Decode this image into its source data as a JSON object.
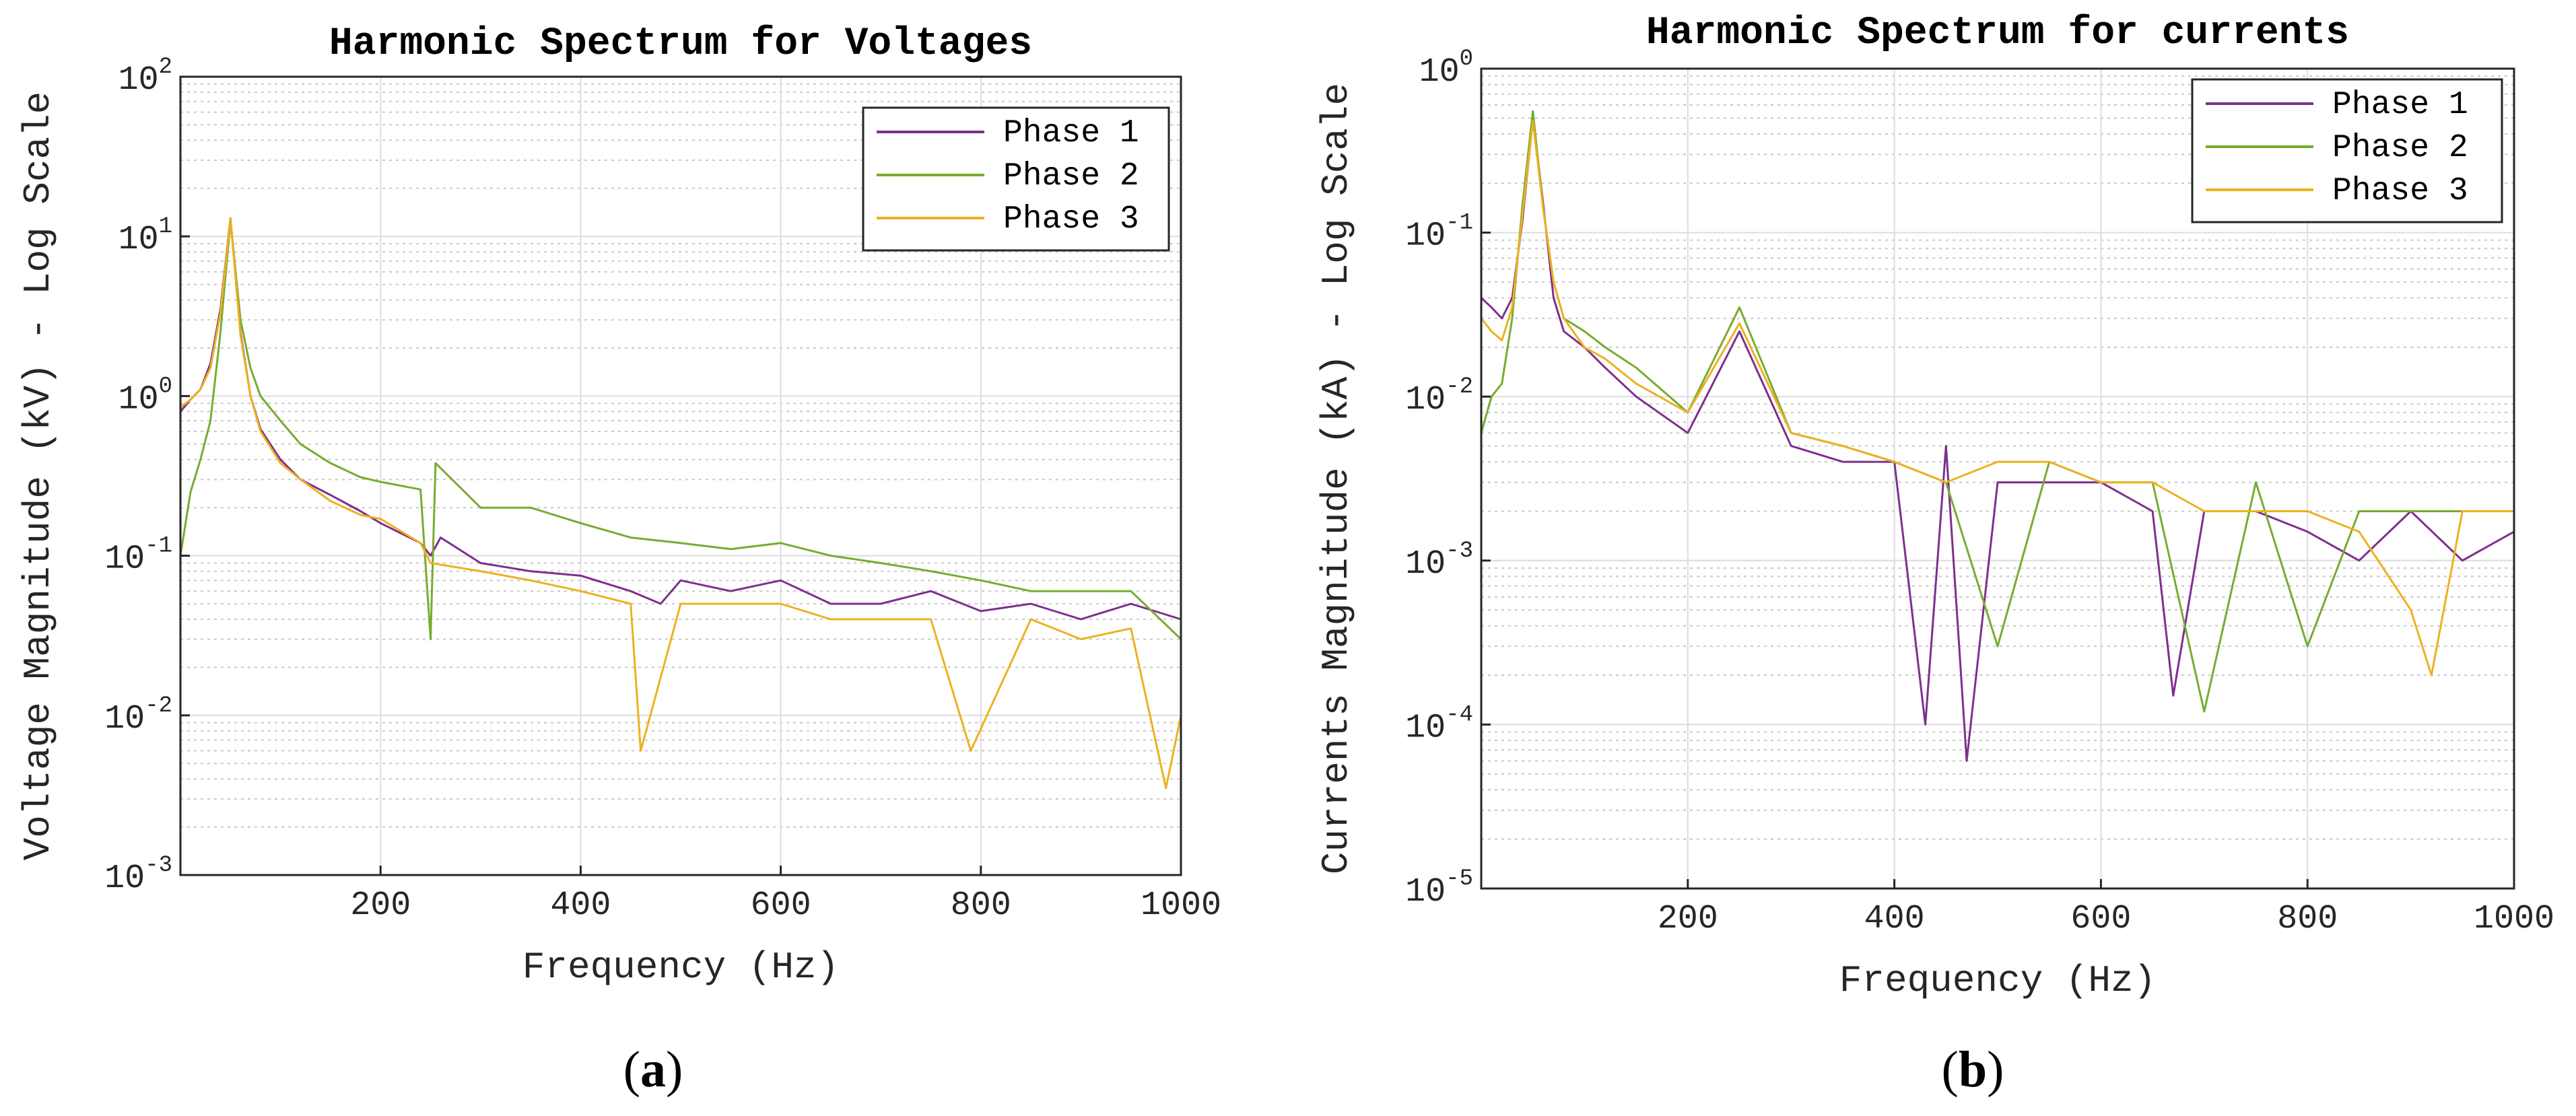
{
  "chart_data": [
    {
      "type": "line",
      "caption": "a",
      "title": "Harmonic Spectrum for Voltages",
      "xlabel": "Frequency (Hz)",
      "ylabel": "Voltage Magnitude (kV) - Log Scale",
      "xlim": [
        0,
        1000
      ],
      "ylim": [
        0.001,
        100
      ],
      "yscale": "log",
      "grid": "major and minor",
      "legend_location": "top-right",
      "xticks": [
        200,
        400,
        600,
        800,
        1000
      ],
      "ytick_exponents": [
        -3,
        -2,
        -1,
        0,
        1,
        2
      ],
      "series": [
        {
          "name": "Phase 1",
          "color": "#7E2F8E",
          "points": [
            [
              0,
              0.8
            ],
            [
              10,
              0.95
            ],
            [
              20,
              1.1
            ],
            [
              30,
              1.6
            ],
            [
              40,
              3.5
            ],
            [
              50,
              13
            ],
            [
              60,
              2.5
            ],
            [
              70,
              1.0
            ],
            [
              80,
              0.62
            ],
            [
              100,
              0.4
            ],
            [
              120,
              0.3
            ],
            [
              150,
              0.24
            ],
            [
              180,
              0.19
            ],
            [
              200,
              0.16
            ],
            [
              240,
              0.12
            ],
            [
              250,
              0.1
            ],
            [
              260,
              0.13
            ],
            [
              300,
              0.09
            ],
            [
              350,
              0.08
            ],
            [
              400,
              0.075
            ],
            [
              450,
              0.06
            ],
            [
              480,
              0.05
            ],
            [
              500,
              0.07
            ],
            [
              550,
              0.06
            ],
            [
              600,
              0.07
            ],
            [
              650,
              0.05
            ],
            [
              700,
              0.05
            ],
            [
              750,
              0.06
            ],
            [
              800,
              0.045
            ],
            [
              850,
              0.05
            ],
            [
              900,
              0.04
            ],
            [
              950,
              0.05
            ],
            [
              1000,
              0.04
            ]
          ]
        },
        {
          "name": "Phase 2",
          "color": "#77AC30",
          "points": [
            [
              0,
              0.1
            ],
            [
              10,
              0.25
            ],
            [
              20,
              0.4
            ],
            [
              30,
              0.7
            ],
            [
              40,
              2.5
            ],
            [
              50,
              12.5
            ],
            [
              60,
              3.0
            ],
            [
              70,
              1.5
            ],
            [
              80,
              1.0
            ],
            [
              100,
              0.7
            ],
            [
              120,
              0.5
            ],
            [
              150,
              0.38
            ],
            [
              180,
              0.31
            ],
            [
              200,
              0.29
            ],
            [
              240,
              0.26
            ],
            [
              250,
              0.03
            ],
            [
              255,
              0.38
            ],
            [
              300,
              0.2
            ],
            [
              350,
              0.2
            ],
            [
              400,
              0.16
            ],
            [
              450,
              0.13
            ],
            [
              500,
              0.12
            ],
            [
              550,
              0.11
            ],
            [
              600,
              0.12
            ],
            [
              650,
              0.1
            ],
            [
              700,
              0.09
            ],
            [
              750,
              0.08
            ],
            [
              800,
              0.07
            ],
            [
              850,
              0.06
            ],
            [
              900,
              0.06
            ],
            [
              950,
              0.06
            ],
            [
              1000,
              0.03
            ]
          ]
        },
        {
          "name": "Phase 3",
          "color": "#EDB120",
          "points": [
            [
              0,
              0.85
            ],
            [
              10,
              0.95
            ],
            [
              20,
              1.1
            ],
            [
              30,
              1.5
            ],
            [
              40,
              3.3
            ],
            [
              50,
              13
            ],
            [
              60,
              2.4
            ],
            [
              70,
              1.0
            ],
            [
              80,
              0.6
            ],
            [
              100,
              0.38
            ],
            [
              120,
              0.3
            ],
            [
              150,
              0.22
            ],
            [
              180,
              0.18
            ],
            [
              200,
              0.17
            ],
            [
              240,
              0.12
            ],
            [
              250,
              0.09
            ],
            [
              300,
              0.08
            ],
            [
              350,
              0.07
            ],
            [
              400,
              0.06
            ],
            [
              450,
              0.05
            ],
            [
              460,
              0.006
            ],
            [
              500,
              0.05
            ],
            [
              550,
              0.05
            ],
            [
              600,
              0.05
            ],
            [
              650,
              0.04
            ],
            [
              700,
              0.04
            ],
            [
              750,
              0.04
            ],
            [
              790,
              0.006
            ],
            [
              850,
              0.04
            ],
            [
              900,
              0.03
            ],
            [
              950,
              0.035
            ],
            [
              985,
              0.0035
            ],
            [
              1000,
              0.01
            ]
          ]
        }
      ]
    },
    {
      "type": "line",
      "caption": "b",
      "title": "Harmonic Spectrum for currents",
      "xlabel": "Frequency (Hz)",
      "ylabel": "Currents Magnitude (kA) - Log Scale",
      "xlim": [
        0,
        1000
      ],
      "ylim": [
        1e-05,
        1
      ],
      "yscale": "log",
      "grid": "major and minor",
      "legend_location": "top-right",
      "xticks": [
        200,
        400,
        600,
        800,
        1000
      ],
      "ytick_exponents": [
        -5,
        -4,
        -3,
        -2,
        -1,
        0
      ],
      "series": [
        {
          "name": "Phase 1",
          "color": "#7E2F8E",
          "points": [
            [
              0,
              0.04
            ],
            [
              10,
              0.035
            ],
            [
              20,
              0.03
            ],
            [
              30,
              0.04
            ],
            [
              40,
              0.12
            ],
            [
              50,
              0.5
            ],
            [
              60,
              0.15
            ],
            [
              70,
              0.04
            ],
            [
              80,
              0.025
            ],
            [
              100,
              0.02
            ],
            [
              120,
              0.015
            ],
            [
              150,
              0.01
            ],
            [
              200,
              0.006
            ],
            [
              250,
              0.025
            ],
            [
              300,
              0.005
            ],
            [
              350,
              0.004
            ],
            [
              400,
              0.004
            ],
            [
              430,
              0.0001
            ],
            [
              450,
              0.005
            ],
            [
              470,
              6e-05
            ],
            [
              500,
              0.003
            ],
            [
              550,
              0.003
            ],
            [
              600,
              0.003
            ],
            [
              650,
              0.002
            ],
            [
              670,
              0.00015
            ],
            [
              700,
              0.002
            ],
            [
              750,
              0.002
            ],
            [
              800,
              0.0015
            ],
            [
              850,
              0.001
            ],
            [
              900,
              0.002
            ],
            [
              950,
              0.001
            ],
            [
              1000,
              0.0015
            ]
          ]
        },
        {
          "name": "Phase 2",
          "color": "#77AC30",
          "points": [
            [
              0,
              0.006
            ],
            [
              10,
              0.01
            ],
            [
              20,
              0.012
            ],
            [
              30,
              0.03
            ],
            [
              40,
              0.15
            ],
            [
              50,
              0.55
            ],
            [
              60,
              0.14
            ],
            [
              70,
              0.05
            ],
            [
              80,
              0.03
            ],
            [
              100,
              0.025
            ],
            [
              120,
              0.02
            ],
            [
              150,
              0.015
            ],
            [
              200,
              0.008
            ],
            [
              250,
              0.035
            ],
            [
              300,
              0.006
            ],
            [
              350,
              0.005
            ],
            [
              400,
              0.004
            ],
            [
              450,
              0.003
            ],
            [
              500,
              0.0003
            ],
            [
              550,
              0.004
            ],
            [
              600,
              0.003
            ],
            [
              650,
              0.003
            ],
            [
              700,
              0.00012
            ],
            [
              750,
              0.003
            ],
            [
              800,
              0.0003
            ],
            [
              850,
              0.002
            ],
            [
              900,
              0.002
            ],
            [
              950,
              0.002
            ],
            [
              1000,
              0.002
            ]
          ]
        },
        {
          "name": "Phase 3",
          "color": "#EDB120",
          "points": [
            [
              0,
              0.03
            ],
            [
              10,
              0.025
            ],
            [
              20,
              0.022
            ],
            [
              30,
              0.035
            ],
            [
              40,
              0.13
            ],
            [
              50,
              0.48
            ],
            [
              60,
              0.14
            ],
            [
              70,
              0.05
            ],
            [
              80,
              0.03
            ],
            [
              100,
              0.02
            ],
            [
              120,
              0.017
            ],
            [
              150,
              0.012
            ],
            [
              200,
              0.008
            ],
            [
              250,
              0.028
            ],
            [
              300,
              0.006
            ],
            [
              350,
              0.005
            ],
            [
              400,
              0.004
            ],
            [
              450,
              0.003
            ],
            [
              500,
              0.004
            ],
            [
              550,
              0.004
            ],
            [
              600,
              0.003
            ],
            [
              650,
              0.003
            ],
            [
              700,
              0.002
            ],
            [
              750,
              0.002
            ],
            [
              800,
              0.002
            ],
            [
              850,
              0.0015
            ],
            [
              900,
              0.0005
            ],
            [
              920,
              0.0002
            ],
            [
              950,
              0.002
            ],
            [
              1000,
              0.002
            ]
          ]
        }
      ]
    }
  ]
}
